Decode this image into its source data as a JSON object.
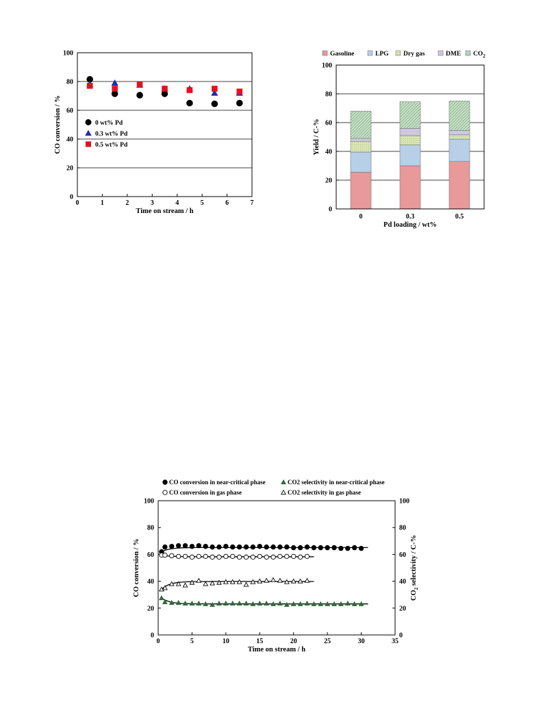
{
  "chart_data": [
    {
      "type": "scatter",
      "xlabel": "Time on stream / h",
      "ylabel": "CO conversion / %",
      "xlim": [
        0,
        7
      ],
      "ylim": [
        0,
        100
      ],
      "xticks": [
        "0",
        "1",
        "2",
        "3",
        "4",
        "5",
        "6",
        "7"
      ],
      "yticks": [
        "0",
        "20",
        "40",
        "60",
        "80",
        "100"
      ],
      "grid": "horizontal",
      "legend_position": "left",
      "series": [
        {
          "name": "0 wt% Pd",
          "marker": "circle",
          "color": "#000000",
          "x": [
            0.5,
            1.5,
            2.5,
            3.5,
            4.5,
            5.5,
            6.5
          ],
          "y": [
            81.5,
            71.5,
            70.5,
            71.5,
            65,
            64.5,
            65
          ]
        },
        {
          "name": "0.3 wt% Pd",
          "marker": "triangle",
          "color": "#1f2ab8",
          "x": [
            0.5,
            1.5,
            2.5,
            3.5,
            4.5,
            5.5,
            6.5
          ],
          "y": [
            78,
            79,
            77.5,
            75,
            75,
            72,
            72
          ]
        },
        {
          "name": "0.5 wt% Pd",
          "marker": "square",
          "color": "#e0141c",
          "x": [
            0.5,
            1.5,
            2.5,
            3.5,
            4.5,
            5.5,
            6.5
          ],
          "y": [
            77,
            75,
            78,
            75,
            74,
            75,
            73
          ]
        }
      ]
    },
    {
      "type": "bar",
      "stacked": true,
      "xlabel": "Pd loading / wt%",
      "ylabel": "Yield / C-%",
      "ylim": [
        0,
        100
      ],
      "yticks": [
        "0",
        "20",
        "40",
        "60",
        "80",
        "100"
      ],
      "grid": "horizontal",
      "legend_position": "top",
      "categories": [
        "0",
        "0.3",
        "0.5"
      ],
      "series": [
        {
          "name": "Gasoline",
          "color": "#e8999a",
          "values": [
            25.5,
            30,
            33
          ]
        },
        {
          "name": "LPG",
          "color": "#b8cfe8",
          "values": [
            14,
            14.5,
            15.5
          ]
        },
        {
          "name": "Dry gas",
          "color": "#d9e6b5",
          "values": [
            7.5,
            6.5,
            3
          ]
        },
        {
          "name": "DME",
          "color": "#cfc7e2",
          "values": [
            2,
            5,
            3
          ]
        },
        {
          "name": "CO2",
          "color": "#c8e0c8",
          "values": [
            19,
            18.5,
            20.5
          ]
        }
      ]
    },
    {
      "type": "scatter",
      "xlabel": "Time on stream / h",
      "ylabel": "CO conversion / %",
      "y2label": "CO2 selectivity / C-%",
      "xlim": [
        0,
        35
      ],
      "ylim": [
        0,
        100
      ],
      "y2lim": [
        0,
        100
      ],
      "xticks": [
        "0",
        "5",
        "10",
        "15",
        "20",
        "25",
        "30",
        "35"
      ],
      "yticks": [
        "0",
        "20",
        "40",
        "60",
        "80",
        "100"
      ],
      "grid": "off",
      "legend_position": "top",
      "series": [
        {
          "name": "CO conversion in near-critical phase",
          "marker": "filled-circle",
          "color": "#000000",
          "x": [
            0.5,
            1,
            2,
            3,
            4,
            5,
            6,
            7,
            8,
            9,
            10,
            11,
            12,
            13,
            14,
            15,
            16,
            17,
            18,
            19,
            20,
            21,
            22,
            23,
            24,
            25,
            26,
            27,
            28,
            29,
            30
          ],
          "y": [
            62,
            65.5,
            66,
            66.5,
            66.5,
            66,
            66.5,
            66,
            65.5,
            65.5,
            66,
            65.5,
            65.5,
            65.5,
            65.5,
            66,
            65.5,
            65.5,
            65.5,
            65.5,
            65,
            65,
            65.5,
            65,
            65,
            65,
            65,
            64.5,
            64.5,
            65,
            64.5
          ]
        },
        {
          "name": "CO2 selectivity in near-critical phase",
          "marker": "filled-triangle",
          "color": "#2f6b3a",
          "x": [
            0.5,
            1,
            2,
            3,
            4,
            5,
            6,
            7,
            8,
            9,
            10,
            11,
            12,
            13,
            14,
            15,
            16,
            17,
            18,
            19,
            20,
            21,
            22,
            23,
            24,
            25,
            26,
            27,
            28,
            29,
            30
          ],
          "y": [
            27.5,
            24.5,
            24,
            24,
            23.5,
            23.5,
            23.5,
            23,
            22.5,
            23.5,
            23.5,
            23.5,
            23.5,
            23.5,
            23,
            23.5,
            23.5,
            23,
            23.5,
            22.5,
            23,
            23,
            23.5,
            23,
            23,
            23,
            23,
            23,
            23.5,
            23,
            23
          ]
        },
        {
          "name": "CO conversion in gas phase",
          "marker": "open-circle",
          "color": "#000000",
          "x": [
            0.5,
            1,
            2,
            3,
            4,
            5,
            6,
            7,
            8,
            9,
            10,
            11,
            12,
            13,
            14,
            15,
            16,
            17,
            18,
            19,
            20,
            21,
            22
          ],
          "y": [
            59.5,
            59.5,
            59,
            58.5,
            58.5,
            58,
            58.5,
            58.5,
            58,
            58,
            58.5,
            58.5,
            58,
            58,
            58,
            58.5,
            58,
            58,
            58.5,
            58.5,
            58.5,
            58,
            58.5
          ]
        },
        {
          "name": "CO2 selectivity in gas phase",
          "marker": "open-triangle",
          "color": "#000000",
          "x": [
            0.5,
            1,
            2,
            3,
            4,
            5,
            6,
            7,
            8,
            9,
            10,
            11,
            12,
            13,
            14,
            15,
            16,
            17,
            18,
            19,
            20,
            21,
            22
          ],
          "y": [
            34,
            35,
            38,
            38,
            37,
            39,
            40.5,
            38,
            38.5,
            39,
            39.5,
            39.5,
            39.5,
            37.5,
            39.5,
            40,
            40.5,
            41,
            40.5,
            39.5,
            40,
            40,
            40.5
          ]
        }
      ]
    }
  ]
}
